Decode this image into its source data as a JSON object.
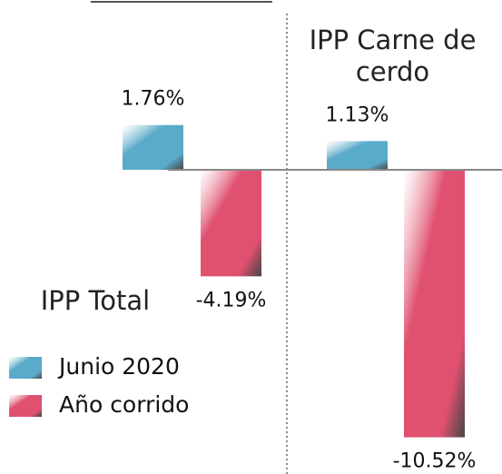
{
  "chart_data": {
    "type": "bar",
    "categories": [
      "IPP Total",
      "IPP Carne de cerdo"
    ],
    "series": [
      {
        "name": "Junio 2020",
        "color": "#5aaac9",
        "values": [
          1.76,
          1.13
        ],
        "value_labels": [
          "1.76%",
          "1.13%"
        ]
      },
      {
        "name": "Año corrido",
        "color": "#e0506f",
        "values": [
          -4.19,
          -10.52
        ],
        "value_labels": [
          "-4.19%",
          "-10.52%"
        ]
      }
    ],
    "ylim": [
      -11,
      6
    ],
    "legend": "bottom-left"
  }
}
